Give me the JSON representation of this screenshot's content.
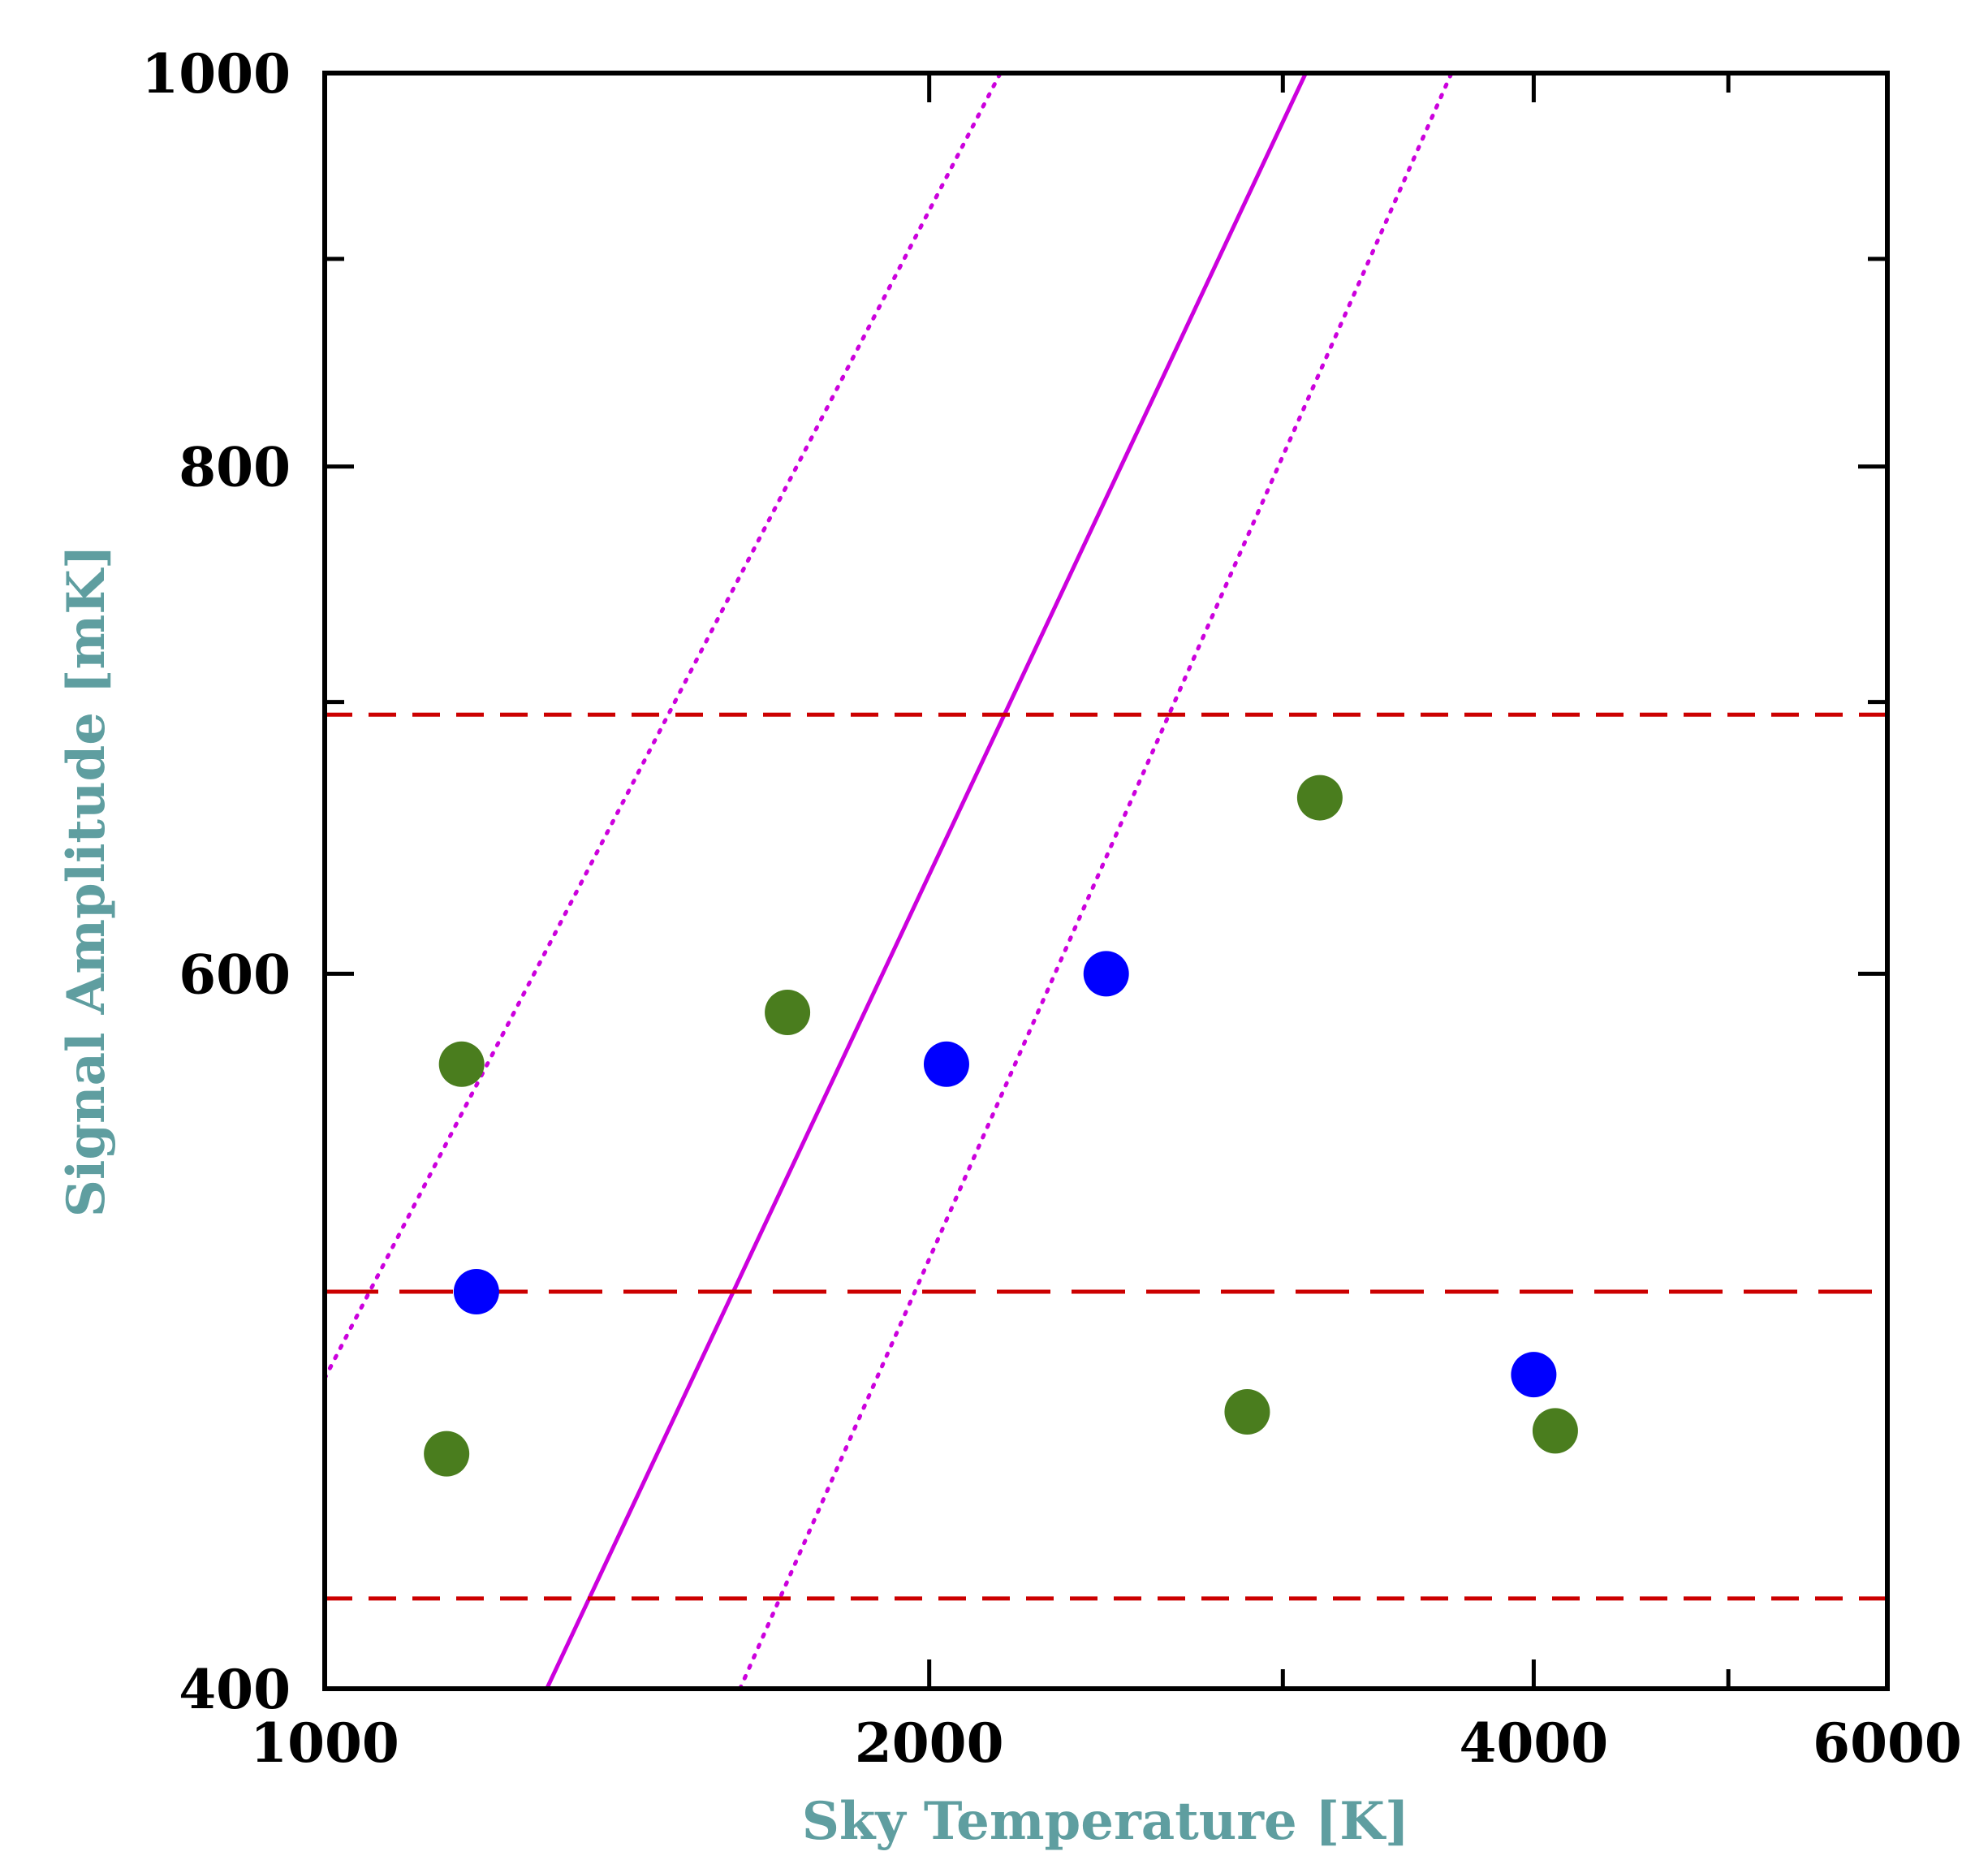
{
  "chart_data": {
    "type": "scatter",
    "title": "",
    "xlabel": "Sky Temperature [K]",
    "ylabel": "Signal Amplitude [mK]",
    "x_scale": "log",
    "y_scale": "log",
    "xlim": [
      1000,
      6000
    ],
    "ylim": [
      400,
      1000
    ],
    "x_ticks": [
      1000,
      2000,
      4000,
      6000
    ],
    "y_ticks": [
      400,
      600,
      800,
      1000
    ],
    "x_minor_ticks": [
      3000,
      5000
    ],
    "y_minor_ticks": [
      700,
      900
    ],
    "grid": false,
    "axis_title_color": "#5f9ea0",
    "series": [
      {
        "color": "#4a7d1e",
        "marker": "circle",
        "points": [
          [
            1170,
            570
          ],
          [
            1700,
            587
          ],
          [
            1150,
            457
          ],
          [
            2880,
            468
          ],
          [
            3130,
            663
          ],
          [
            4100,
            463
          ]
        ]
      },
      {
        "color": "#0000ff",
        "marker": "circle",
        "points": [
          [
            1190,
            501
          ],
          [
            2040,
            570
          ],
          [
            2450,
            600
          ],
          [
            4000,
            478
          ]
        ]
      }
    ],
    "lines": [
      {
        "style": "solid",
        "color": "#cc00dd",
        "points": [
          [
            1290,
            400
          ],
          [
            3080,
            1000
          ]
        ]
      },
      {
        "style": "dotted",
        "color": "#cc00dd",
        "points": [
          [
            1000,
            477
          ],
          [
            2170,
            1000
          ]
        ]
      },
      {
        "style": "dotted",
        "color": "#cc00dd",
        "points": [
          [
            1610,
            400
          ],
          [
            3640,
            1000
          ]
        ]
      },
      {
        "style": "dashed",
        "color": "#cc0000",
        "y": 695
      },
      {
        "style": "long-dashed",
        "color": "#cc0000",
        "y": 501
      },
      {
        "style": "dashed",
        "color": "#cc0000",
        "y": 421
      }
    ]
  }
}
